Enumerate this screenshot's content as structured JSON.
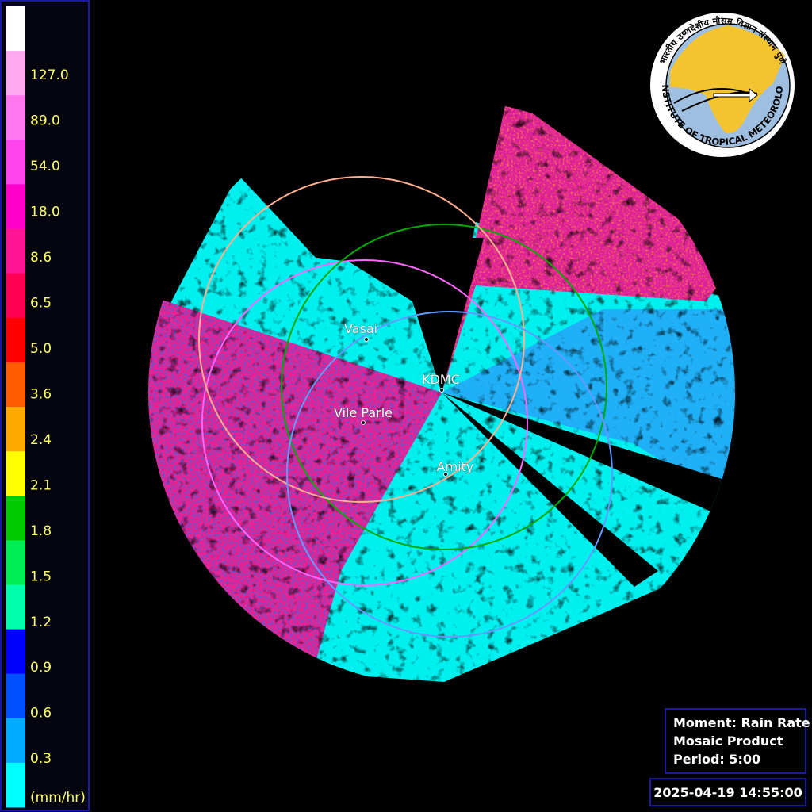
{
  "legend": {
    "unit": "(mm/hr)",
    "labels": [
      "127.0",
      "89.0",
      "54.0",
      "18.0",
      "8.6",
      "6.5",
      "5.0",
      "3.6",
      "2.4",
      "2.1",
      "1.8",
      "1.5",
      "1.2",
      "0.9",
      "0.6",
      "0.3"
    ],
    "colors": [
      "#ffffff",
      "#ffaaee",
      "#ff77ee",
      "#ff44ee",
      "#ff00cc",
      "#ff1493",
      "#ff0055",
      "#ff0000",
      "#ff5a00",
      "#ffaa00",
      "#ffff00",
      "#00cc00",
      "#00ee55",
      "#00ffaa",
      "#0000ff",
      "#0050ff",
      "#00aaff",
      "#00ffff"
    ]
  },
  "stations": [
    {
      "label": "Vasai",
      "color": "#ff66ff"
    },
    {
      "label": "KDMC",
      "color": "#00aa00"
    },
    {
      "label": "Vile Parle",
      "color": "#ffb090"
    },
    {
      "label": "Amity",
      "color": "#6699ff"
    }
  ],
  "info": {
    "lines": [
      "Moment: Rain Rate",
      "Mosaic Product",
      "Period: 5:00"
    ],
    "timestamp": "2025-04-19 14:55:00"
  },
  "logo": {
    "english": "INDIAN INSTITUTE OF TROPICAL METEOROLOGY PUNE",
    "hindi": "भारतीय उष्णदेशीय मौसम विज्ञान संस्थान पुणे"
  }
}
